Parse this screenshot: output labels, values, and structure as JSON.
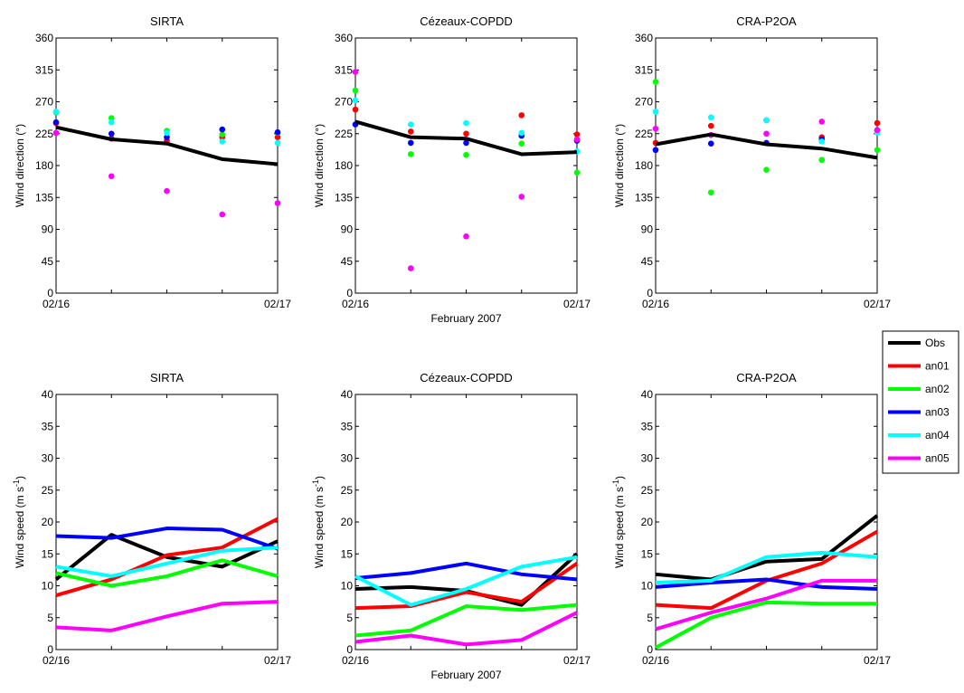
{
  "figure": {
    "xlabel_shared": "February 2007",
    "legend_placement": "right",
    "legend": [
      {
        "label": "Obs",
        "color": "#000000"
      },
      {
        "label": "an01",
        "color": "#ff0000"
      },
      {
        "label": "an02",
        "color": "#00ff00"
      },
      {
        "label": "an03",
        "color": "#0000ff"
      },
      {
        "label": "an04",
        "color": "#00ffff"
      },
      {
        "label": "an05",
        "color": "#ff00ff"
      }
    ]
  },
  "chart_data": [
    {
      "type": "scatter",
      "title": "SIRTA",
      "xlabel": "",
      "ylabel": "Wind direction (°)",
      "x": [
        0,
        0.25,
        0.5,
        0.75,
        1
      ],
      "x_tick_labels": [
        "02/16",
        "02/17"
      ],
      "ylim": [
        0,
        360
      ],
      "yticks": [
        "0",
        "45",
        "90",
        "135",
        "180",
        "225",
        "270",
        "315",
        "360"
      ],
      "grid": false,
      "series": [
        {
          "name": "Obs",
          "color": "#000000",
          "mode": "line",
          "values": [
            234,
            217,
            211,
            189,
            182
          ]
        },
        {
          "name": "an01",
          "color": "#ff0000",
          "mode": "points",
          "values": [
            240,
            218,
            215,
            220,
            220
          ]
        },
        {
          "name": "an02",
          "color": "#00ff00",
          "mode": "points",
          "values": [
            255,
            247,
            229,
            224,
            226
          ]
        },
        {
          "name": "an03",
          "color": "#0000ff",
          "mode": "points",
          "values": [
            241,
            225,
            220,
            231,
            227
          ]
        },
        {
          "name": "an04",
          "color": "#00ffff",
          "mode": "points",
          "values": [
            256,
            241,
            226,
            214,
            212
          ]
        },
        {
          "name": "an05",
          "color": "#ff00ff",
          "mode": "points",
          "values": [
            226,
            165,
            144,
            111,
            127
          ]
        }
      ]
    },
    {
      "type": "scatter",
      "title": "Cézeaux-COPDD",
      "xlabel": "",
      "ylabel": "Wind direction (°)",
      "x": [
        0,
        0.25,
        0.5,
        0.75,
        1
      ],
      "x_tick_labels": [
        "02/16",
        "02/17"
      ],
      "ylim": [
        0,
        360
      ],
      "yticks": [
        "0",
        "45",
        "90",
        "135",
        "180",
        "225",
        "270",
        "315",
        "360"
      ],
      "grid": false,
      "series": [
        {
          "name": "Obs",
          "color": "#000000",
          "mode": "line",
          "values": [
            242,
            220,
            218,
            196,
            199
          ]
        },
        {
          "name": "an01",
          "color": "#ff0000",
          "mode": "points",
          "values": [
            259,
            228,
            225,
            251,
            224
          ]
        },
        {
          "name": "an02",
          "color": "#00ff00",
          "mode": "points",
          "values": [
            286,
            196,
            195,
            211,
            170
          ]
        },
        {
          "name": "an03",
          "color": "#0000ff",
          "mode": "points",
          "values": [
            238,
            212,
            212,
            222,
            215
          ]
        },
        {
          "name": "an04",
          "color": "#00ffff",
          "mode": "points",
          "values": [
            272,
            238,
            240,
            226,
            200
          ]
        },
        {
          "name": "an05",
          "color": "#ff00ff",
          "mode": "points",
          "values": [
            312,
            35,
            80,
            136,
            217
          ]
        }
      ]
    },
    {
      "type": "scatter",
      "title": "CRA-P2OA",
      "xlabel": "",
      "ylabel": "Wind direction (°)",
      "x": [
        0,
        0.25,
        0.5,
        0.75,
        1
      ],
      "x_tick_labels": [
        "02/16",
        "02/17"
      ],
      "ylim": [
        0,
        360
      ],
      "yticks": [
        "0",
        "45",
        "90",
        "135",
        "180",
        "225",
        "270",
        "315",
        "360"
      ],
      "grid": false,
      "series": [
        {
          "name": "Obs",
          "color": "#000000",
          "mode": "line",
          "values": [
            210,
            224,
            210,
            204,
            191
          ]
        },
        {
          "name": "an01",
          "color": "#ff0000",
          "mode": "points",
          "values": [
            212,
            236,
            244,
            220,
            240
          ]
        },
        {
          "name": "an02",
          "color": "#00ff00",
          "mode": "points",
          "values": [
            298,
            142,
            174,
            188,
            202
          ]
        },
        {
          "name": "an03",
          "color": "#0000ff",
          "mode": "points",
          "values": [
            202,
            211,
            212,
            217,
            230
          ]
        },
        {
          "name": "an04",
          "color": "#00ffff",
          "mode": "points",
          "values": [
            256,
            248,
            244,
            214,
            226
          ]
        },
        {
          "name": "an05",
          "color": "#ff00ff",
          "mode": "points",
          "values": [
            232,
            223,
            225,
            242,
            230
          ]
        }
      ]
    },
    {
      "type": "line",
      "title": "SIRTA",
      "xlabel": "",
      "ylabel": "Wind speed (m s-1)",
      "x": [
        0,
        0.25,
        0.5,
        0.75,
        1
      ],
      "x_tick_labels": [
        "02/16",
        "02/17"
      ],
      "ylim": [
        0,
        40
      ],
      "yticks": [
        "0",
        "5",
        "10",
        "15",
        "20",
        "25",
        "30",
        "35",
        "40"
      ],
      "grid": false,
      "series": [
        {
          "name": "Obs",
          "color": "#000000",
          "values": [
            11,
            18,
            14.5,
            13,
            17
          ]
        },
        {
          "name": "an01",
          "color": "#ff0000",
          "values": [
            8.5,
            11,
            14.8,
            16,
            20.5
          ]
        },
        {
          "name": "an02",
          "color": "#00ff00",
          "values": [
            12,
            10,
            11.5,
            14,
            11.5
          ]
        },
        {
          "name": "an03",
          "color": "#0000ff",
          "values": [
            17.8,
            17.5,
            19,
            18.8,
            15.8
          ]
        },
        {
          "name": "an04",
          "color": "#00ffff",
          "values": [
            13,
            11.5,
            13.5,
            15.5,
            16
          ]
        },
        {
          "name": "an05",
          "color": "#ff00ff",
          "values": [
            3.5,
            3,
            5.2,
            7.2,
            7.5
          ]
        }
      ]
    },
    {
      "type": "line",
      "title": "Cézeaux-COPDD",
      "xlabel": "February 2007",
      "ylabel": "Wind speed (m s-1)",
      "x": [
        0,
        0.25,
        0.5,
        0.75,
        1
      ],
      "x_tick_labels": [
        "02/16",
        "02/17"
      ],
      "ylim": [
        0,
        40
      ],
      "yticks": [
        "0",
        "5",
        "10",
        "15",
        "20",
        "25",
        "30",
        "35",
        "40"
      ],
      "grid": false,
      "series": [
        {
          "name": "Obs",
          "color": "#000000",
          "values": [
            9.5,
            9.8,
            9.2,
            7,
            15
          ]
        },
        {
          "name": "an01",
          "color": "#ff0000",
          "values": [
            6.5,
            6.8,
            9,
            7.5,
            13.5
          ]
        },
        {
          "name": "an02",
          "color": "#00ff00",
          "values": [
            2.2,
            3,
            6.8,
            6.2,
            7
          ]
        },
        {
          "name": "an03",
          "color": "#0000ff",
          "values": [
            11.2,
            12,
            13.5,
            11.8,
            11
          ]
        },
        {
          "name": "an04",
          "color": "#00ffff",
          "values": [
            11.5,
            7,
            9.5,
            13,
            14.5
          ]
        },
        {
          "name": "an05",
          "color": "#ff00ff",
          "values": [
            1.2,
            2.2,
            0.8,
            1.5,
            5.8
          ]
        }
      ]
    },
    {
      "type": "line",
      "title": "CRA-P2OA",
      "xlabel": "",
      "ylabel": "Wind speed (m s-1)",
      "x": [
        0,
        0.25,
        0.5,
        0.75,
        1
      ],
      "x_tick_labels": [
        "02/16",
        "02/17"
      ],
      "ylim": [
        0,
        40
      ],
      "yticks": [
        "0",
        "5",
        "10",
        "15",
        "20",
        "25",
        "30",
        "35",
        "40"
      ],
      "grid": false,
      "series": [
        {
          "name": "Obs",
          "color": "#000000",
          "values": [
            11.8,
            11,
            13.8,
            14.2,
            21
          ]
        },
        {
          "name": "an01",
          "color": "#ff0000",
          "values": [
            7,
            6.5,
            10.8,
            13.5,
            18.5
          ]
        },
        {
          "name": "an02",
          "color": "#00ff00",
          "values": [
            0.3,
            5,
            7.4,
            7.2,
            7.2
          ]
        },
        {
          "name": "an03",
          "color": "#0000ff",
          "values": [
            9.8,
            10.5,
            11,
            9.8,
            9.5
          ]
        },
        {
          "name": "an04",
          "color": "#00ffff",
          "values": [
            10.5,
            10.8,
            14.5,
            15.2,
            14.5
          ]
        },
        {
          "name": "an05",
          "color": "#ff00ff",
          "values": [
            3.2,
            5.8,
            8,
            10.8,
            10.8
          ]
        }
      ]
    }
  ]
}
